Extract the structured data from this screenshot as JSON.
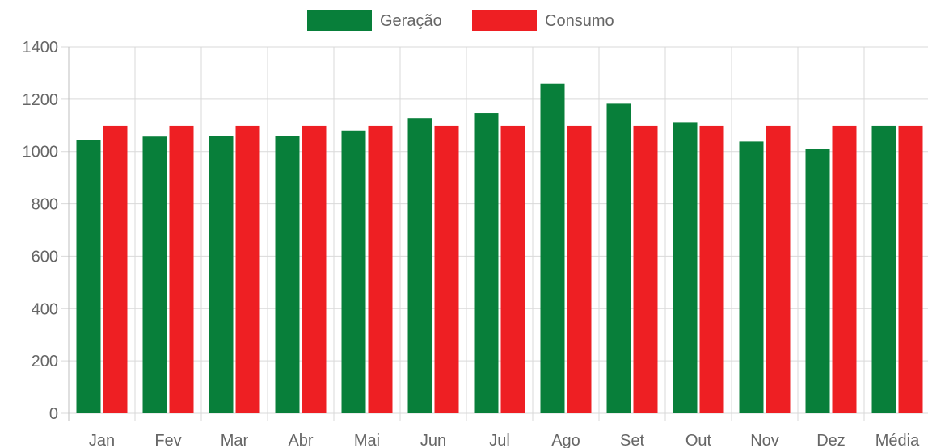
{
  "chart_data": {
    "type": "bar",
    "categories": [
      "Jan",
      "Fev",
      "Mar",
      "Abr",
      "Mai",
      "Jun",
      "Jul",
      "Ago",
      "Set",
      "Out",
      "Nov",
      "Dez",
      "Média"
    ],
    "series": [
      {
        "name": "Geração",
        "color": "#087f3a",
        "values": [
          1043,
          1057,
          1059,
          1060,
          1080,
          1128,
          1147,
          1259,
          1183,
          1112,
          1038,
          1011,
          1098
        ]
      },
      {
        "name": "Consumo",
        "color": "#ee1f23",
        "values": [
          1098,
          1098,
          1098,
          1098,
          1098,
          1098,
          1098,
          1098,
          1098,
          1098,
          1098,
          1098,
          1098
        ]
      }
    ],
    "title": "",
    "xlabel": "",
    "ylabel": "",
    "ylim": [
      0,
      1400
    ],
    "yticks": [
      0,
      200,
      400,
      600,
      800,
      1000,
      1200,
      1400
    ],
    "grid": true,
    "legend_position": "top-center"
  }
}
